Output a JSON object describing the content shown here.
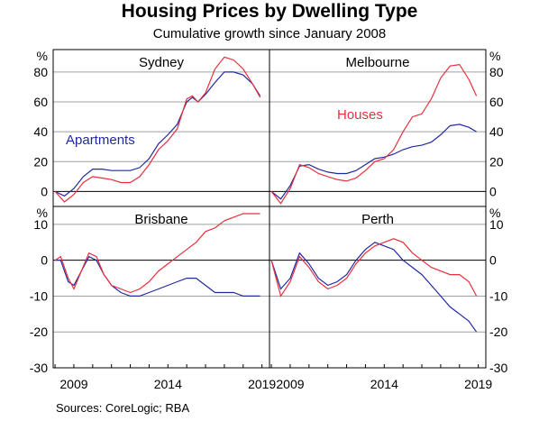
{
  "title": "Housing Prices by Dwelling Type",
  "subtitle": "Cumulative growth since January 2008",
  "source": "Sources:  CoreLogic; RBA",
  "colors": {
    "houses": "#e8303c",
    "apartments": "#1f2aa0",
    "axis": "#000000",
    "grid": "#a0a0a0"
  },
  "chart_data": [
    {
      "type": "line",
      "title": "Sydney",
      "ylabel": "%",
      "ylim": [
        -10,
        95
      ],
      "yticks": [
        "0",
        "20",
        "40",
        "60",
        "80"
      ],
      "xticks": [
        "2009",
        "2014",
        "2019"
      ],
      "series_labels": {
        "apartments": "Apartments"
      },
      "series": [
        {
          "name": "Apartments",
          "key": "apartments",
          "x": [
            2008.0,
            2008.5,
            2009.0,
            2009.5,
            2010.0,
            2010.5,
            2011.0,
            2011.5,
            2012.0,
            2012.5,
            2013.0,
            2013.5,
            2014.0,
            2014.5,
            2015.0,
            2015.3,
            2015.6,
            2016.0,
            2016.5,
            2017.0,
            2017.5,
            2018.0,
            2018.5,
            2018.9
          ],
          "y": [
            0,
            -3,
            2,
            10,
            15,
            15,
            14,
            14,
            14,
            16,
            22,
            32,
            38,
            45,
            60,
            63,
            60,
            65,
            73,
            80,
            80,
            78,
            72,
            64
          ]
        },
        {
          "name": "Houses",
          "key": "houses",
          "x": [
            2008.0,
            2008.5,
            2009.0,
            2009.5,
            2010.0,
            2010.5,
            2011.0,
            2011.5,
            2012.0,
            2012.5,
            2013.0,
            2013.5,
            2014.0,
            2014.5,
            2015.0,
            2015.3,
            2015.6,
            2016.0,
            2016.5,
            2017.0,
            2017.5,
            2018.0,
            2018.5,
            2018.9
          ],
          "y": [
            0,
            -7,
            -2,
            6,
            10,
            9,
            8,
            6,
            6,
            10,
            18,
            28,
            34,
            42,
            62,
            64,
            60,
            66,
            82,
            90,
            88,
            82,
            72,
            63
          ]
        }
      ]
    },
    {
      "type": "line",
      "title": "Melbourne",
      "ylabel": "%",
      "ylim": [
        -10,
        95
      ],
      "yticks": [
        "0",
        "20",
        "40",
        "60",
        "80"
      ],
      "xticks": [
        "2009",
        "2014",
        "2019"
      ],
      "series_labels": {
        "houses": "Houses"
      },
      "series": [
        {
          "name": "Apartments",
          "key": "apartments",
          "x": [
            2008.0,
            2008.5,
            2009.0,
            2009.5,
            2010.0,
            2010.5,
            2011.0,
            2011.5,
            2012.0,
            2012.5,
            2013.0,
            2013.5,
            2014.0,
            2014.5,
            2015.0,
            2015.5,
            2016.0,
            2016.5,
            2017.0,
            2017.5,
            2018.0,
            2018.5,
            2018.9
          ],
          "y": [
            0,
            -5,
            4,
            17,
            18,
            15,
            13,
            12,
            12,
            14,
            18,
            22,
            23,
            25,
            28,
            30,
            31,
            33,
            38,
            44,
            45,
            43,
            40
          ]
        },
        {
          "name": "Houses",
          "key": "houses",
          "x": [
            2008.0,
            2008.5,
            2009.0,
            2009.5,
            2010.0,
            2010.5,
            2011.0,
            2011.5,
            2012.0,
            2012.5,
            2013.0,
            2013.5,
            2014.0,
            2014.5,
            2015.0,
            2015.5,
            2016.0,
            2016.5,
            2017.0,
            2017.5,
            2018.0,
            2018.5,
            2018.9
          ],
          "y": [
            0,
            -8,
            2,
            18,
            16,
            12,
            10,
            8,
            7,
            9,
            14,
            20,
            22,
            28,
            40,
            50,
            52,
            62,
            76,
            84,
            85,
            75,
            64
          ]
        }
      ]
    },
    {
      "type": "line",
      "title": "Brisbane",
      "ylabel": "%",
      "ylim": [
        -30,
        15
      ],
      "yticks": [
        "-30",
        "-20",
        "-10",
        "0",
        "10"
      ],
      "xticks": [
        "2009",
        "2014",
        "2019"
      ],
      "series": [
        {
          "name": "Apartments",
          "key": "apartments",
          "x": [
            2008.0,
            2008.3,
            2008.7,
            2009.0,
            2009.4,
            2009.8,
            2010.2,
            2010.6,
            2011.0,
            2011.5,
            2012.0,
            2012.5,
            2013.0,
            2013.5,
            2014.0,
            2014.5,
            2015.0,
            2015.5,
            2016.0,
            2016.5,
            2017.0,
            2017.5,
            2018.0,
            2018.5,
            2018.9
          ],
          "y": [
            0,
            0,
            -6,
            -7,
            -3,
            1,
            0,
            -4,
            -7,
            -9,
            -10,
            -10,
            -9,
            -8,
            -7,
            -6,
            -5,
            -5,
            -7,
            -9,
            -9,
            -9,
            -10,
            -10,
            -10
          ]
        },
        {
          "name": "Houses",
          "key": "houses",
          "x": [
            2008.0,
            2008.3,
            2008.7,
            2009.0,
            2009.4,
            2009.8,
            2010.2,
            2010.6,
            2011.0,
            2011.5,
            2012.0,
            2012.5,
            2013.0,
            2013.5,
            2014.0,
            2014.5,
            2015.0,
            2015.5,
            2016.0,
            2016.5,
            2017.0,
            2017.5,
            2018.0,
            2018.5,
            2018.9
          ],
          "y": [
            0,
            1,
            -5,
            -8,
            -3,
            2,
            1,
            -4,
            -7,
            -8,
            -9,
            -8,
            -6,
            -3,
            -1,
            1,
            3,
            5,
            8,
            9,
            11,
            12,
            13,
            13,
            13
          ]
        }
      ]
    },
    {
      "type": "line",
      "title": "Perth",
      "ylabel": "%",
      "ylim": [
        -30,
        15
      ],
      "yticks": [
        "-30",
        "-20",
        "-10",
        "0",
        "10"
      ],
      "xticks": [
        "2009",
        "2014",
        "2019"
      ],
      "series": [
        {
          "name": "Apartments",
          "key": "apartments",
          "x": [
            2008.0,
            2008.5,
            2009.0,
            2009.5,
            2010.0,
            2010.5,
            2011.0,
            2011.5,
            2012.0,
            2012.5,
            2013.0,
            2013.5,
            2014.0,
            2014.5,
            2015.0,
            2015.5,
            2016.0,
            2016.5,
            2017.0,
            2017.5,
            2018.0,
            2018.5,
            2018.9
          ],
          "y": [
            0,
            -8,
            -5,
            2,
            -1,
            -5,
            -7,
            -6,
            -4,
            0,
            3,
            5,
            4,
            3,
            0,
            -2,
            -4,
            -7,
            -10,
            -13,
            -15,
            -17,
            -20
          ]
        },
        {
          "name": "Houses",
          "key": "houses",
          "x": [
            2008.0,
            2008.5,
            2009.0,
            2009.5,
            2010.0,
            2010.5,
            2011.0,
            2011.5,
            2012.0,
            2012.5,
            2013.0,
            2013.5,
            2014.0,
            2014.5,
            2015.0,
            2015.5,
            2016.0,
            2016.5,
            2017.0,
            2017.5,
            2018.0,
            2018.5,
            2018.9
          ],
          "y": [
            0,
            -10,
            -6,
            1,
            -2,
            -6,
            -8,
            -7,
            -5,
            -1,
            2,
            4,
            5,
            6,
            5,
            2,
            0,
            -2,
            -3,
            -4,
            -4,
            -6,
            -10
          ]
        }
      ]
    }
  ]
}
